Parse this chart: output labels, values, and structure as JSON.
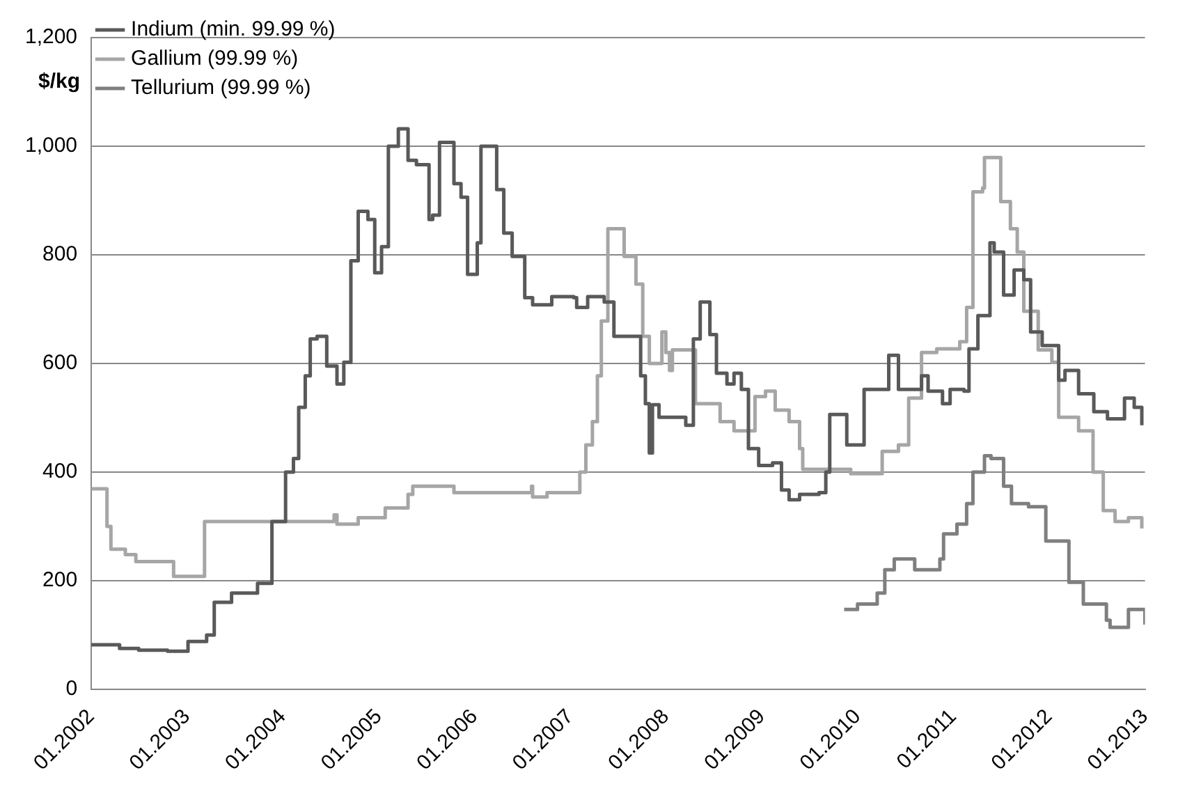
{
  "chart_data": {
    "type": "step",
    "ylabel": "$/kg",
    "legend": "top left",
    "grid": "y",
    "marker": "none",
    "line_style": "solid",
    "xlim": [
      "2002-01",
      "2013-01"
    ],
    "ylim": [
      0,
      1200
    ],
    "xticks": [
      {
        "value": "2002-01",
        "label": "01.2002"
      },
      {
        "value": "2003-01",
        "label": "01.2003"
      },
      {
        "value": "2004-01",
        "label": "01.2004"
      },
      {
        "value": "2005-01",
        "label": "01.2005"
      },
      {
        "value": "2006-01",
        "label": "01.2006"
      },
      {
        "value": "2007-01",
        "label": "01.2007"
      },
      {
        "value": "2008-01",
        "label": "01.2008"
      },
      {
        "value": "2009-01",
        "label": "01.2009"
      },
      {
        "value": "2010-01",
        "label": "01.2010"
      },
      {
        "value": "2011-01",
        "label": "01.2011"
      },
      {
        "value": "2012-01",
        "label": "01.2012"
      },
      {
        "value": "2013-01",
        "label": "01.2013"
      }
    ],
    "yticks": [
      0,
      200,
      400,
      600,
      800,
      {
        "value": 1000,
        "label": "1,000"
      },
      {
        "value": 1200,
        "label": "1,200"
      }
    ],
    "series": [
      {
        "name": "Indium (min. 99.99 %)",
        "color": "#595959",
        "x": [
          "2002-01-01",
          "2002-04-19",
          "2002-07-01",
          "2002-10-19",
          "2003-01-05",
          "2003-03-17",
          "2003-04-15",
          "2003-06-20",
          "2003-09-27",
          "2003-11-21",
          "2004-01-12",
          "2004-02-11",
          "2004-03-02",
          "2004-03-27",
          "2004-04-15",
          "2004-05-11",
          "2004-06-17",
          "2004-07-26",
          "2004-08-21",
          "2004-09-17",
          "2004-10-15",
          "2004-11-21",
          "2004-12-17",
          "2005-01-12",
          "2005-02-07",
          "2005-03-17",
          "2005-04-23",
          "2005-05-25",
          "2005-07-12",
          "2005-07-26",
          "2005-08-21",
          "2005-09-09",
          "2005-10-15",
          "2005-11-11",
          "2005-12-06",
          "2006-01-12",
          "2006-01-26",
          "2006-02-21",
          "2006-03-27",
          "2006-04-23",
          "2006-05-25",
          "2006-07-12",
          "2006-08-11",
          "2006-10-15",
          "2006-10-23",
          "2007-01-15",
          "2007-01-26",
          "2007-03-09",
          "2007-05-11",
          "2007-06-17",
          "2007-09-09",
          "2007-09-27",
          "2007-10-15",
          "2007-10-30",
          "2007-11-11",
          "2007-12-06",
          "2008-03-17",
          "2008-04-15",
          "2008-05-11",
          "2008-06-17",
          "2008-07-12",
          "2008-08-21",
          "2008-09-17",
          "2008-10-15",
          "2008-11-11",
          "2008-12-20",
          "2009-02-11",
          "2009-03-17",
          "2009-04-15",
          "2009-05-25",
          "2009-08-07",
          "2009-09-02",
          "2009-09-17",
          "2009-10-23",
          "2009-11-21",
          "2010-01-26",
          "2010-03-09",
          "2010-04-30",
          "2010-06-06",
          "2010-07-26",
          "2010-09-02",
          "2010-09-27",
          "2010-11-21",
          "2010-12-20",
          "2011-02-11",
          "2011-03-02",
          "2011-04-05",
          "2011-05-21",
          "2011-06-06",
          "2011-07-12",
          "2011-08-21",
          "2011-09-27",
          "2011-10-23",
          "2011-12-06",
          "2012-02-07",
          "2012-03-02",
          "2012-04-23",
          "2012-06-20",
          "2012-08-11",
          "2012-10-15",
          "2012-11-21",
          "2012-12-20"
        ],
        "values": [
          82,
          75,
          72,
          70,
          88,
          100,
          160,
          177,
          195,
          309,
          400,
          425,
          519,
          577,
          645,
          650,
          595,
          562,
          602,
          789,
          880,
          865,
          767,
          815,
          1000,
          1032,
          974,
          966,
          865,
          873,
          1007,
          1007,
          931,
          906,
          764,
          822,
          1000,
          1000,
          920,
          840,
          797,
          721,
          708,
          708,
          723,
          721,
          703,
          723,
          713,
          650,
          650,
          577,
          526,
          435,
          524,
          501,
          486,
          645,
          713,
          653,
          582,
          562,
          582,
          552,
          443,
          412,
          417,
          367,
          349,
          359,
          362,
          400,
          506,
          506,
          450,
          552,
          552,
          615,
          552,
          552,
          577,
          549,
          526,
          552,
          549,
          627,
          688,
          822,
          805,
          726,
          772,
          754,
          658,
          633,
          569,
          587,
          544,
          511,
          498,
          536,
          519,
          486
        ]
      },
      {
        "name": "Gallium (99.99 %)",
        "color": "#a6a6a6",
        "x": [
          "2002-01-01",
          "2002-02-21",
          "2002-03-02",
          "2002-03-17",
          "2002-05-11",
          "2002-06-20",
          "2002-10-30",
          "2002-11-11",
          "2003-03-02",
          "2003-03-09",
          "2004-05-11",
          "2004-07-15",
          "2004-07-26",
          "2004-10-15",
          "2005-01-26",
          "2005-04-23",
          "2005-05-11",
          "2005-09-27",
          "2005-10-15",
          "2006-07-15",
          "2006-08-07",
          "2006-08-11",
          "2006-09-27",
          "2006-10-05",
          "2007-01-15",
          "2007-02-07",
          "2007-03-02",
          "2007-03-27",
          "2007-04-15",
          "2007-04-30",
          "2007-05-25",
          "2007-07-15",
          "2007-07-26",
          "2007-09-09",
          "2007-10-05",
          "2007-10-30",
          "2007-11-25",
          "2007-12-17",
          "2008-01-01",
          "2008-01-15",
          "2008-01-26",
          "2008-04-05",
          "2008-04-23",
          "2008-07-01",
          "2008-07-26",
          "2008-09-17",
          "2008-10-30",
          "2008-12-06",
          "2009-01-15",
          "2009-02-21",
          "2009-04-15",
          "2009-05-25",
          "2009-06-06",
          "2009-11-21",
          "2009-12-06",
          "2010-03-17",
          "2010-04-05",
          "2010-06-06",
          "2010-07-15",
          "2010-09-02",
          "2010-10-30",
          "2011-01-26",
          "2011-02-21",
          "2011-03-17",
          "2011-04-23",
          "2011-04-30",
          "2011-06-06",
          "2011-07-01",
          "2011-08-07",
          "2011-09-02",
          "2011-09-27",
          "2011-11-21",
          "2012-01-12",
          "2012-02-07",
          "2012-04-23",
          "2012-06-17",
          "2012-07-26",
          "2012-09-09",
          "2012-10-30",
          "2012-12-20"
        ],
        "values": [
          369,
          369,
          300,
          258,
          248,
          235,
          235,
          208,
          208,
          309,
          309,
          321,
          304,
          316,
          334,
          359,
          374,
          374,
          362,
          362,
          374,
          354,
          354,
          362,
          362,
          400,
          450,
          493,
          577,
          678,
          848,
          848,
          797,
          746,
          650,
          600,
          600,
          658,
          620,
          587,
          625,
          625,
          526,
          526,
          493,
          476,
          476,
          539,
          549,
          514,
          493,
          443,
          405,
          405,
          397,
          397,
          438,
          450,
          536,
          620,
          627,
          640,
          703,
          916,
          923,
          979,
          979,
          898,
          848,
          805,
          696,
          625,
          602,
          501,
          476,
          400,
          329,
          309,
          316,
          296
        ]
      },
      {
        "name": "Tellurium (99.99 %)",
        "color": "#7f7f7f",
        "x": [
          "2009-11-11",
          "2010-01-01",
          "2010-03-17",
          "2010-04-15",
          "2010-05-21",
          "2010-07-12",
          "2010-08-07",
          "2010-10-05",
          "2010-11-11",
          "2010-11-25",
          "2011-01-15",
          "2011-02-21",
          "2011-03-17",
          "2011-04-30",
          "2011-05-25",
          "2011-07-12",
          "2011-08-11",
          "2011-10-15",
          "2011-12-20",
          "2012-03-17",
          "2012-05-11",
          "2012-08-07",
          "2012-08-21",
          "2012-10-30",
          "2013-01-01"
        ],
        "values": [
          147,
          157,
          177,
          220,
          240,
          240,
          220,
          220,
          240,
          286,
          304,
          342,
          400,
          430,
          425,
          374,
          342,
          336,
          273,
          197,
          157,
          127,
          114,
          147,
          119
        ]
      }
    ]
  }
}
